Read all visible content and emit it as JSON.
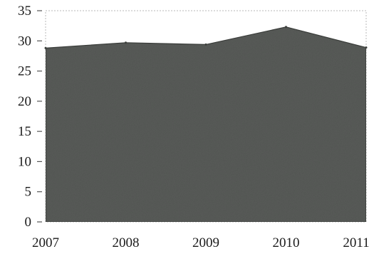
{
  "chart_data": {
    "type": "area",
    "title": "",
    "xlabel": "",
    "ylabel": "",
    "x": [
      "2007",
      "2008",
      "2009",
      "2010",
      "2011"
    ],
    "series": [
      {
        "values": [
          28.8,
          29.7,
          29.4,
          32.3,
          28.9
        ]
      }
    ],
    "ylim": [
      0,
      35
    ],
    "yticks": [
      0,
      5,
      10,
      15,
      20,
      25,
      30,
      35
    ],
    "grid": false,
    "legend": "none",
    "colors": {
      "area_fill": "#595c59",
      "area_edge": "#3c3f3c",
      "frame": "#b9b9b9",
      "tick": "#555555"
    }
  }
}
